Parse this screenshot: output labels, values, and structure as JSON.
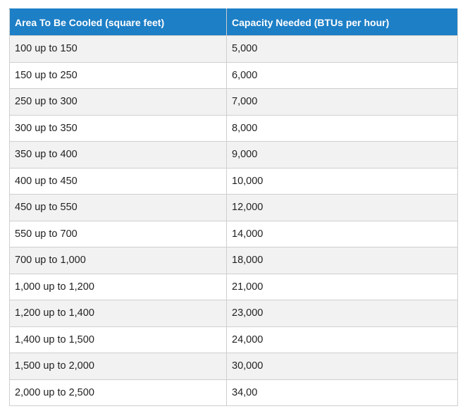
{
  "table": {
    "headers": [
      "Area To Be Cooled (square feet)",
      "Capacity Needed (BTUs per hour)"
    ],
    "rows": [
      [
        "100 up to 150",
        "5,000"
      ],
      [
        "150 up to 250",
        "6,000"
      ],
      [
        "250 up to 300",
        "7,000"
      ],
      [
        "300 up to 350",
        "8,000"
      ],
      [
        "350 up to 400",
        "9,000"
      ],
      [
        "400 up to 450",
        "10,000"
      ],
      [
        "450 up to 550",
        "12,000"
      ],
      [
        "550 up to 700",
        "14,000"
      ],
      [
        "700 up to 1,000",
        "18,000"
      ],
      [
        "1,000 up to 1,200",
        "21,000"
      ],
      [
        "1,200 up to 1,400",
        "23,000"
      ],
      [
        "1,400 up to 1,500",
        "24,000"
      ],
      [
        "1,500 up to 2,000",
        "30,000"
      ],
      [
        "2,000 up to 2,500",
        "34,00"
      ]
    ]
  },
  "colors": {
    "header_bg": "#1d7fc6",
    "header_text": "#ffffff",
    "row_alt_bg": "#f2f2f2",
    "border": "#cfcfcf"
  }
}
